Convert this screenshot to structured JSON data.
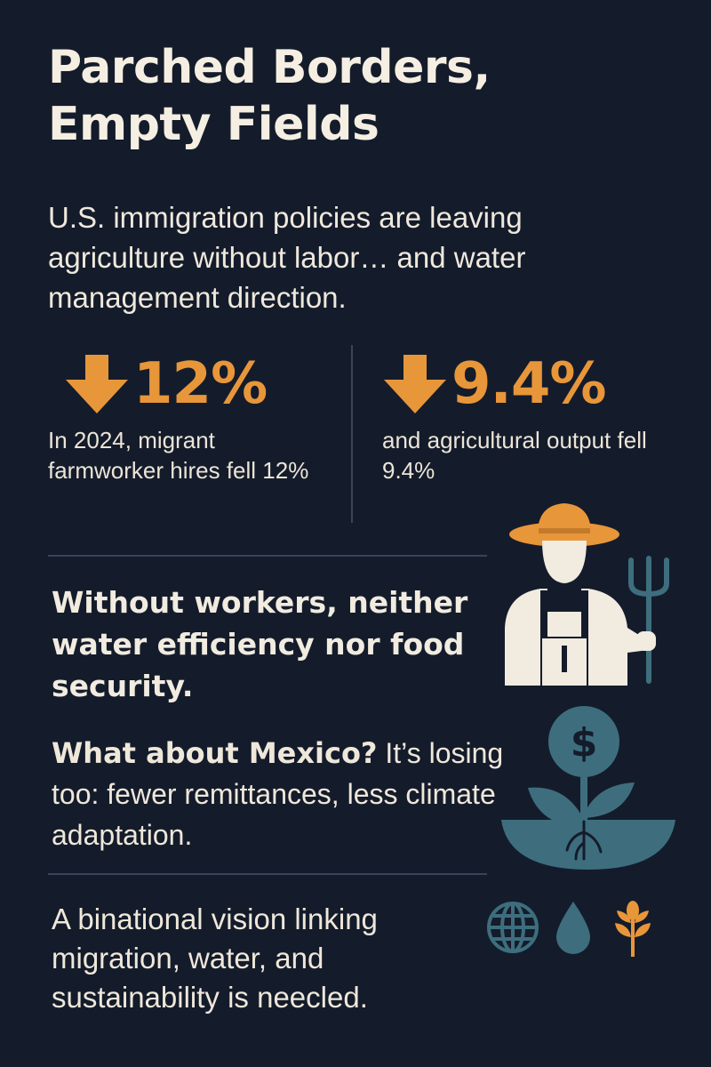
{
  "header": {
    "title_line1": "Parched Borders,",
    "title_line2": "Empty Fields",
    "subtitle": "U.S. immigration policies are leaving agriculture without labor… and water management direction."
  },
  "stats": [
    {
      "value": "12%",
      "caption": "In 2024, migrant farmworker hires fell 12%",
      "icon": "arrow-down-icon"
    },
    {
      "value": "9.4%",
      "caption": "and agricultural output fell 9.4%",
      "icon": "arrow-down-icon"
    }
  ],
  "callout": "Without workers, neither water efficiency nor food security.",
  "mexico": {
    "lead": "What about Mexico?",
    "text": " It’s losing too: fewer remittances, less climate adaptation."
  },
  "closing": "A binational vision linking migration, water, and sustainability is neecled.",
  "icons": [
    "farmer-with-pitchfork-icon",
    "money-plant-icon",
    "globe-icon",
    "water-drop-icon",
    "wheat-icon"
  ],
  "colors": {
    "background": "#141c2b",
    "accent": "#e8963a",
    "teal": "#3e6e7e",
    "cream": "#f1ebe0"
  }
}
